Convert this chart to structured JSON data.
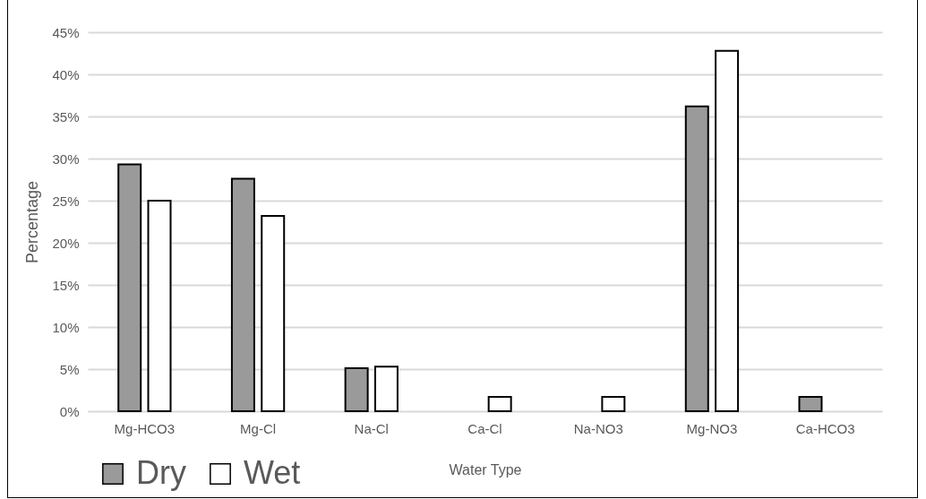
{
  "chart_data": {
    "type": "bar",
    "xlabel": "Water Type",
    "ylabel": "Percentage",
    "categories": [
      "Mg-HCO3",
      "Mg-Cl",
      "Na-Cl",
      "Ca-Cl",
      "Na-NO3",
      "Mg-NO3",
      "Ca-HCO3"
    ],
    "series": [
      {
        "name": "Dry",
        "color": "#9a9a9a",
        "values": [
          29.3,
          27.6,
          5.1,
          null,
          null,
          36.2,
          1.7
        ]
      },
      {
        "name": "Wet",
        "color": "#ffffff",
        "values": [
          25.0,
          23.2,
          5.3,
          1.7,
          1.7,
          42.8,
          null
        ]
      }
    ],
    "ylim": [
      0,
      45
    ],
    "yticks": [
      {
        "value": 0,
        "label": "0%"
      },
      {
        "value": 5,
        "label": "5%"
      },
      {
        "value": 10,
        "label": "10%"
      },
      {
        "value": 15,
        "label": "15%"
      },
      {
        "value": 20,
        "label": "20%"
      },
      {
        "value": 25,
        "label": "25%"
      },
      {
        "value": 30,
        "label": "30%"
      },
      {
        "value": 35,
        "label": "35%"
      },
      {
        "value": 40,
        "label": "40%"
      },
      {
        "value": 45,
        "label": "45%"
      }
    ],
    "grid": "y",
    "legend": "bottom left"
  }
}
